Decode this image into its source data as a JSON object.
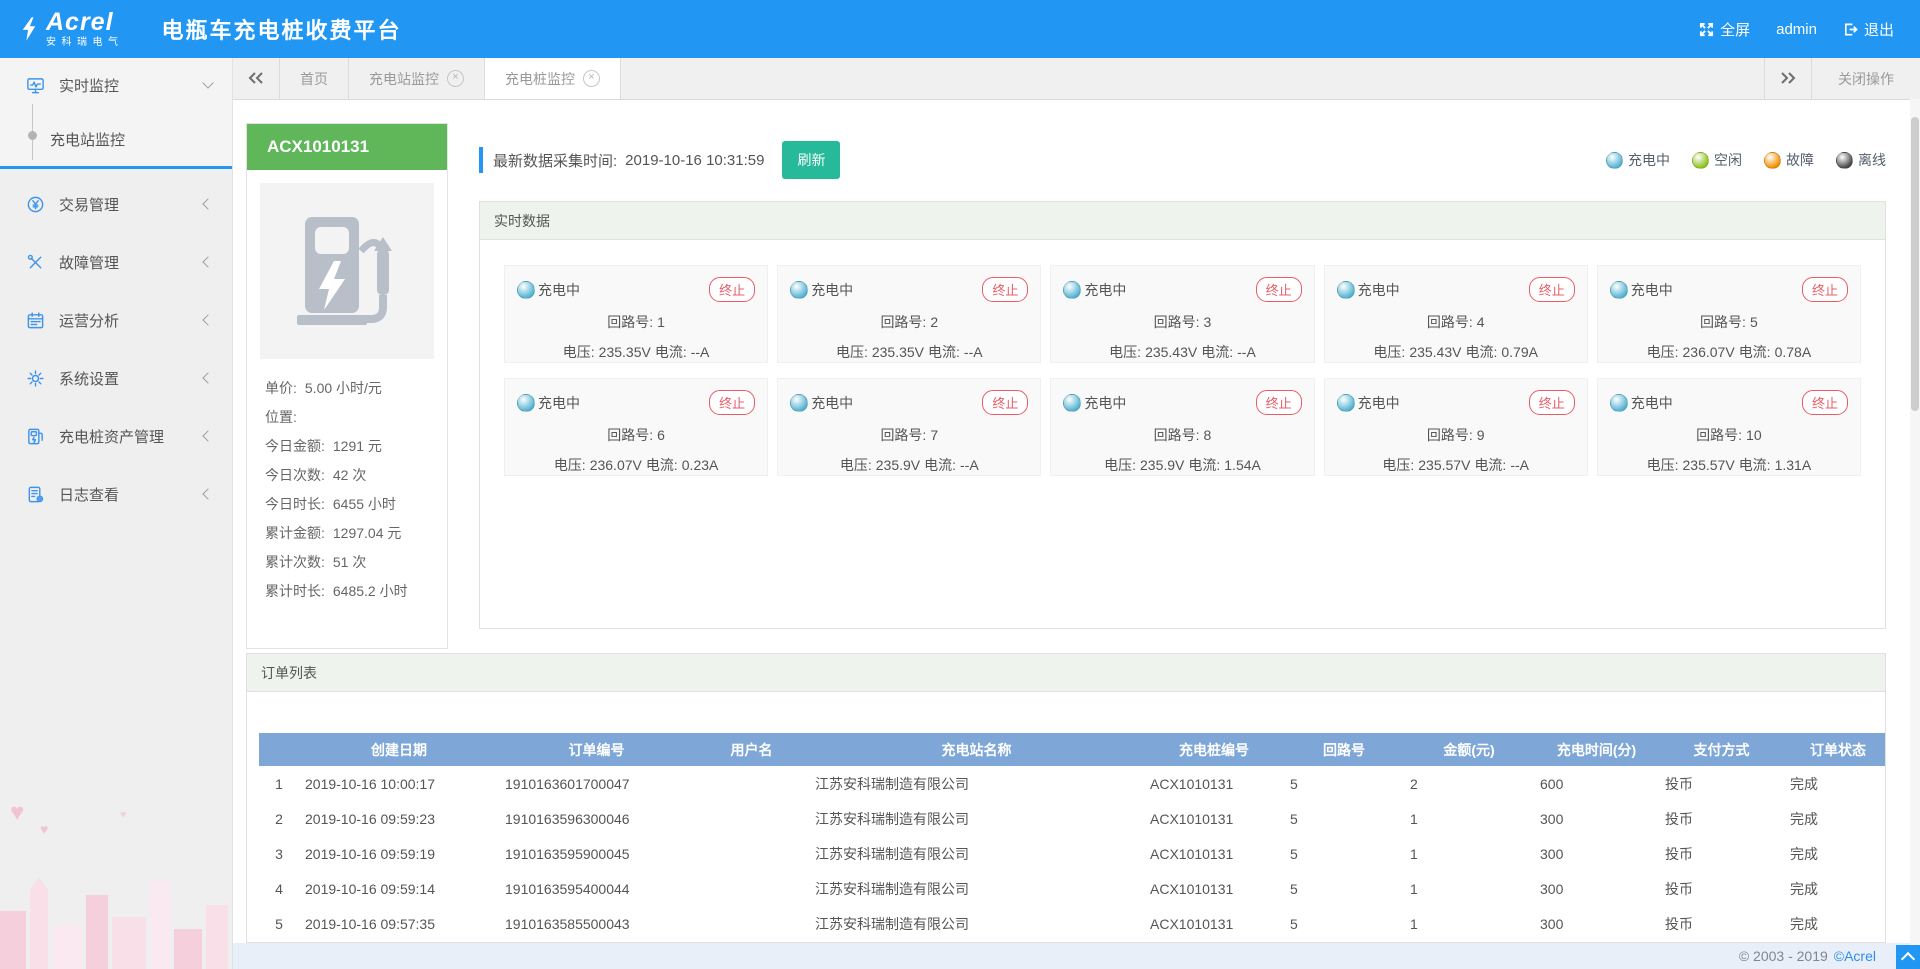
{
  "header": {
    "logo_text": "Acrel",
    "logo_sub": "安科瑞电气",
    "title": "电瓶车充电桩收费平台",
    "fullscreen": "全屏",
    "username": "admin",
    "logout": "退出"
  },
  "tabbar": {
    "tabs": [
      {
        "key": "home",
        "label": "首页",
        "closable": false,
        "active": false
      },
      {
        "key": "station-monitor",
        "label": "充电站监控",
        "closable": true,
        "active": false
      },
      {
        "key": "pile-monitor",
        "label": "充电桩监控",
        "closable": true,
        "active": true
      }
    ],
    "close_menu": "关闭操作"
  },
  "sidebar": {
    "items": [
      {
        "key": "realtime-monitor",
        "icon": "monitor",
        "label": "实时监控",
        "expanded": true,
        "children": [
          {
            "key": "station-monitor",
            "label": "充电站监控",
            "active": true
          }
        ]
      },
      {
        "key": "transaction-management",
        "icon": "transaction",
        "label": "交易管理"
      },
      {
        "key": "fault-management",
        "icon": "fault",
        "label": "故障管理"
      },
      {
        "key": "operation-analysis",
        "icon": "calendar",
        "label": "运营分析"
      },
      {
        "key": "system-settings",
        "icon": "gear",
        "label": "系统设置"
      },
      {
        "key": "pile-asset-management",
        "icon": "asset",
        "label": "充电桩资产管理"
      },
      {
        "key": "log-view",
        "icon": "log",
        "label": "日志查看"
      }
    ]
  },
  "pile": {
    "id": "ACX1010131",
    "stats": [
      {
        "label": "单价:",
        "value": "5.00 小时/元"
      },
      {
        "label": "位置:",
        "value": ""
      },
      {
        "label": "今日金额:",
        "value": "1291 元"
      },
      {
        "label": "今日次数:",
        "value": "42 次"
      },
      {
        "label": "今日时长:",
        "value": "6455 小时"
      },
      {
        "label": "累计金额:",
        "value": "1297.04 元"
      },
      {
        "label": "累计次数:",
        "value": "51 次"
      },
      {
        "label": "累计时长:",
        "value": "6485.2 小时"
      }
    ]
  },
  "monitor": {
    "collect_time_label": "最新数据采集时间:",
    "collect_time": "2019-10-16 10:31:59",
    "refresh": "刷新",
    "section_title": "实时数据",
    "terminate": "终止",
    "status_label": "充电中",
    "circuit_label": "回路号:",
    "voltage_label": "电压:",
    "current_label": "电流:",
    "legend": [
      {
        "key": "charging",
        "label": "充电中",
        "color": "#56b4d3"
      },
      {
        "key": "idle",
        "label": "空闲",
        "color": "#8fc320"
      },
      {
        "key": "fault",
        "label": "故障",
        "color": "#f19000"
      },
      {
        "key": "offline",
        "label": "离线",
        "color": "#4a4a4a"
      }
    ],
    "circuits": [
      {
        "no": "1",
        "voltage": "235.35V",
        "current": "--A"
      },
      {
        "no": "2",
        "voltage": "235.35V",
        "current": "--A"
      },
      {
        "no": "3",
        "voltage": "235.43V",
        "current": "--A"
      },
      {
        "no": "4",
        "voltage": "235.43V",
        "current": "0.79A"
      },
      {
        "no": "5",
        "voltage": "236.07V",
        "current": "0.78A"
      },
      {
        "no": "6",
        "voltage": "236.07V",
        "current": "0.23A"
      },
      {
        "no": "7",
        "voltage": "235.9V",
        "current": "--A"
      },
      {
        "no": "8",
        "voltage": "235.9V",
        "current": "1.54A"
      },
      {
        "no": "9",
        "voltage": "235.57V",
        "current": "--A"
      },
      {
        "no": "10",
        "voltage": "235.57V",
        "current": "1.31A"
      }
    ]
  },
  "orders": {
    "title": "订单列表",
    "columns": [
      "创建日期",
      "订单编号",
      "用户名",
      "充电站名称",
      "充电桩编号",
      "回路号",
      "金额(元)",
      "充电时间(分)",
      "支付方式",
      "订单状态"
    ],
    "rows": [
      [
        "1",
        "2019-10-16 10:00:17",
        "1910163601700047",
        "",
        "江苏安科瑞制造有限公司",
        "ACX1010131",
        "5",
        "2",
        "600",
        "投币",
        "完成"
      ],
      [
        "2",
        "2019-10-16 09:59:23",
        "1910163596300046",
        "",
        "江苏安科瑞制造有限公司",
        "ACX1010131",
        "5",
        "1",
        "300",
        "投币",
        "完成"
      ],
      [
        "3",
        "2019-10-16 09:59:19",
        "1910163595900045",
        "",
        "江苏安科瑞制造有限公司",
        "ACX1010131",
        "5",
        "1",
        "300",
        "投币",
        "完成"
      ],
      [
        "4",
        "2019-10-16 09:59:14",
        "1910163595400044",
        "",
        "江苏安科瑞制造有限公司",
        "ACX1010131",
        "5",
        "1",
        "300",
        "投币",
        "完成"
      ],
      [
        "5",
        "2019-10-16 09:57:35",
        "1910163585500043",
        "",
        "江苏安科瑞制造有限公司",
        "ACX1010131",
        "5",
        "1",
        "300",
        "投币",
        "完成"
      ]
    ]
  },
  "footer": {
    "copyright": "© 2003 - 2019",
    "brand": "©Acrel"
  }
}
